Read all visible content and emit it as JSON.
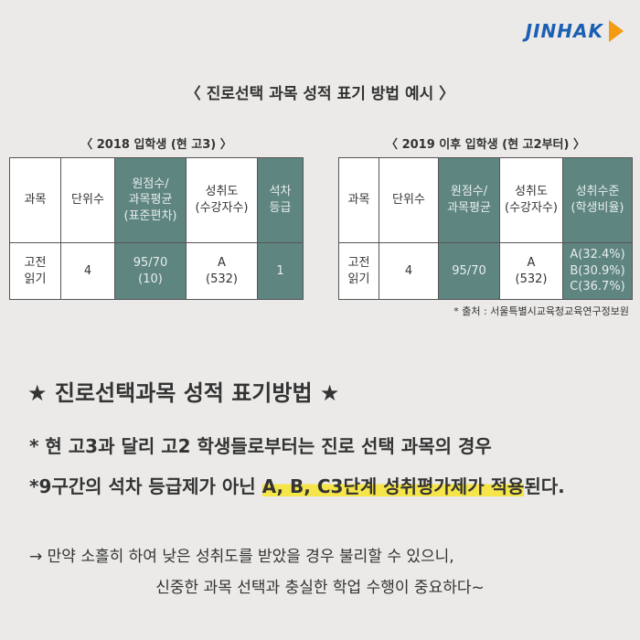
{
  "logo": "JINHAK",
  "title": "〈 진로선택 과목 성적 표기 방법 예시 〉",
  "tables": [
    {
      "caption": "〈 2018 입학생 (현 고3) 〉",
      "header": [
        "과목",
        "단위수",
        "원점수/\n과목평균\n(표준편차)",
        "성취도\n(수강자수)",
        "석차\n등급"
      ],
      "rows": [
        [
          "고전\n읽기",
          "4",
          "95/70\n(10)",
          "A\n(532)",
          "1"
        ]
      ]
    },
    {
      "caption": "〈 2019 이후 입학생 (현 고2부터) 〉",
      "header": [
        "과목",
        "단위수",
        "원점수/\n과목평균",
        "성취도\n(수강자수)",
        "성취수준\n(학생비율)"
      ],
      "rows": [
        [
          "고전\n읽기",
          "4",
          "95/70",
          "A\n(532)",
          "A(32.4%)\nB(30.9%)\nC(36.7%)"
        ]
      ]
    }
  ],
  "source": "* 출처 : 서울특별시교육청교육연구정보원",
  "section": {
    "heading": "★ 진로선택과목 성적 표기방법 ★",
    "line1": "*  현 고3과 달리 고2 학생들로부터는 진로 선택 과목의 경우",
    "line2": {
      "before": "*9구간의 석차 등급제가 아닌 ",
      "highlight": "A, B, C3단계 성취평가제가 적용",
      "after": "된다."
    },
    "note1": "→ 만약 소홀히 하여 낮은 성취도를 받았을 경우 불리할 수 있으니,",
    "note2": "신중한 과목 선택과 충실한 학업 수행이 중요하다~"
  }
}
